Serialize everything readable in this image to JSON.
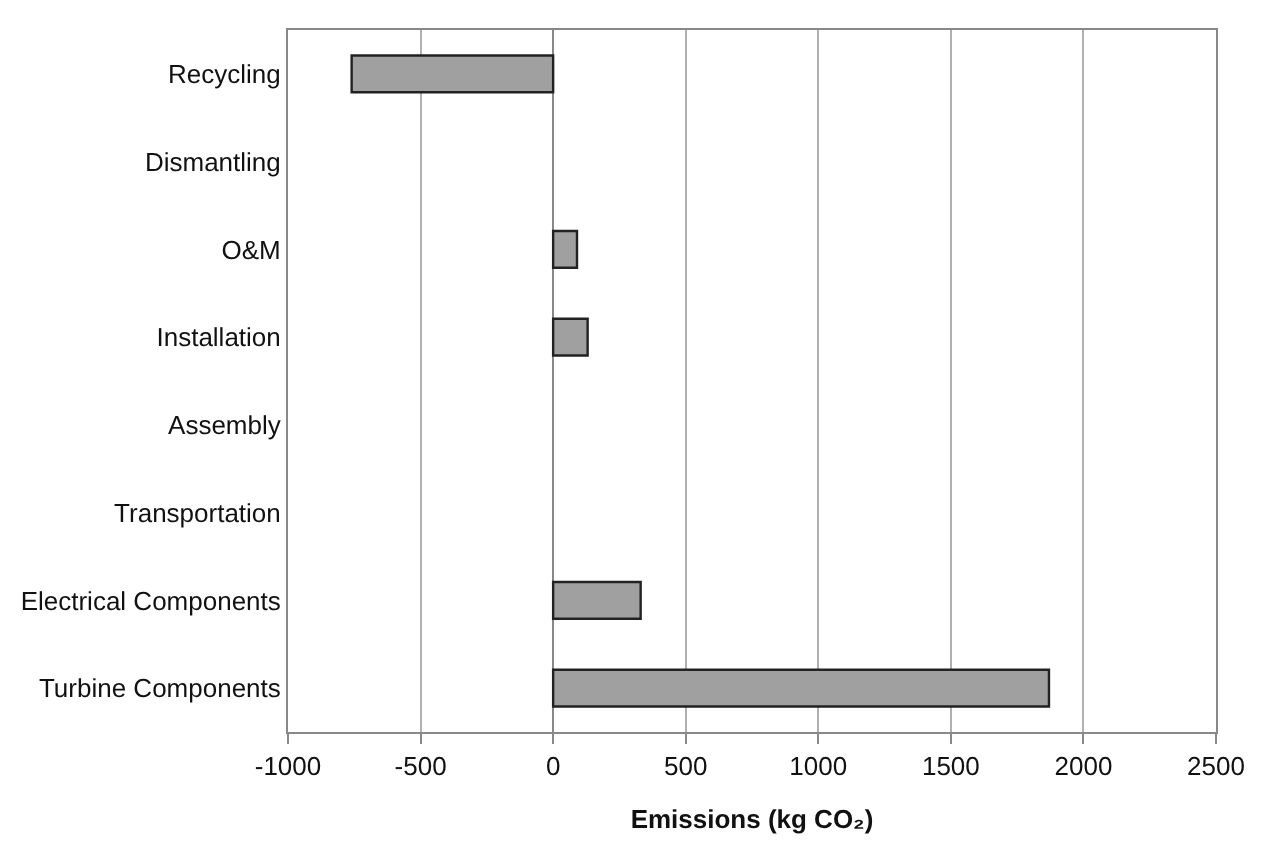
{
  "chart_data": {
    "type": "bar",
    "orientation": "horizontal",
    "categories": [
      "Recycling",
      "Dismantling",
      "O&M",
      "Installation",
      "Assembly",
      "Transportation",
      "Electrical Components",
      "Turbine Components"
    ],
    "values": [
      -760,
      null,
      90,
      130,
      null,
      null,
      330,
      1870
    ],
    "color": "#a0a0a0",
    "xlabel": "Emissions (kg CO₂)",
    "xlim": [
      -1000,
      2500
    ],
    "xticks": [
      -1000,
      -500,
      0,
      500,
      1000,
      1500,
      2000,
      2500
    ],
    "grid": "x",
    "legend": false
  }
}
